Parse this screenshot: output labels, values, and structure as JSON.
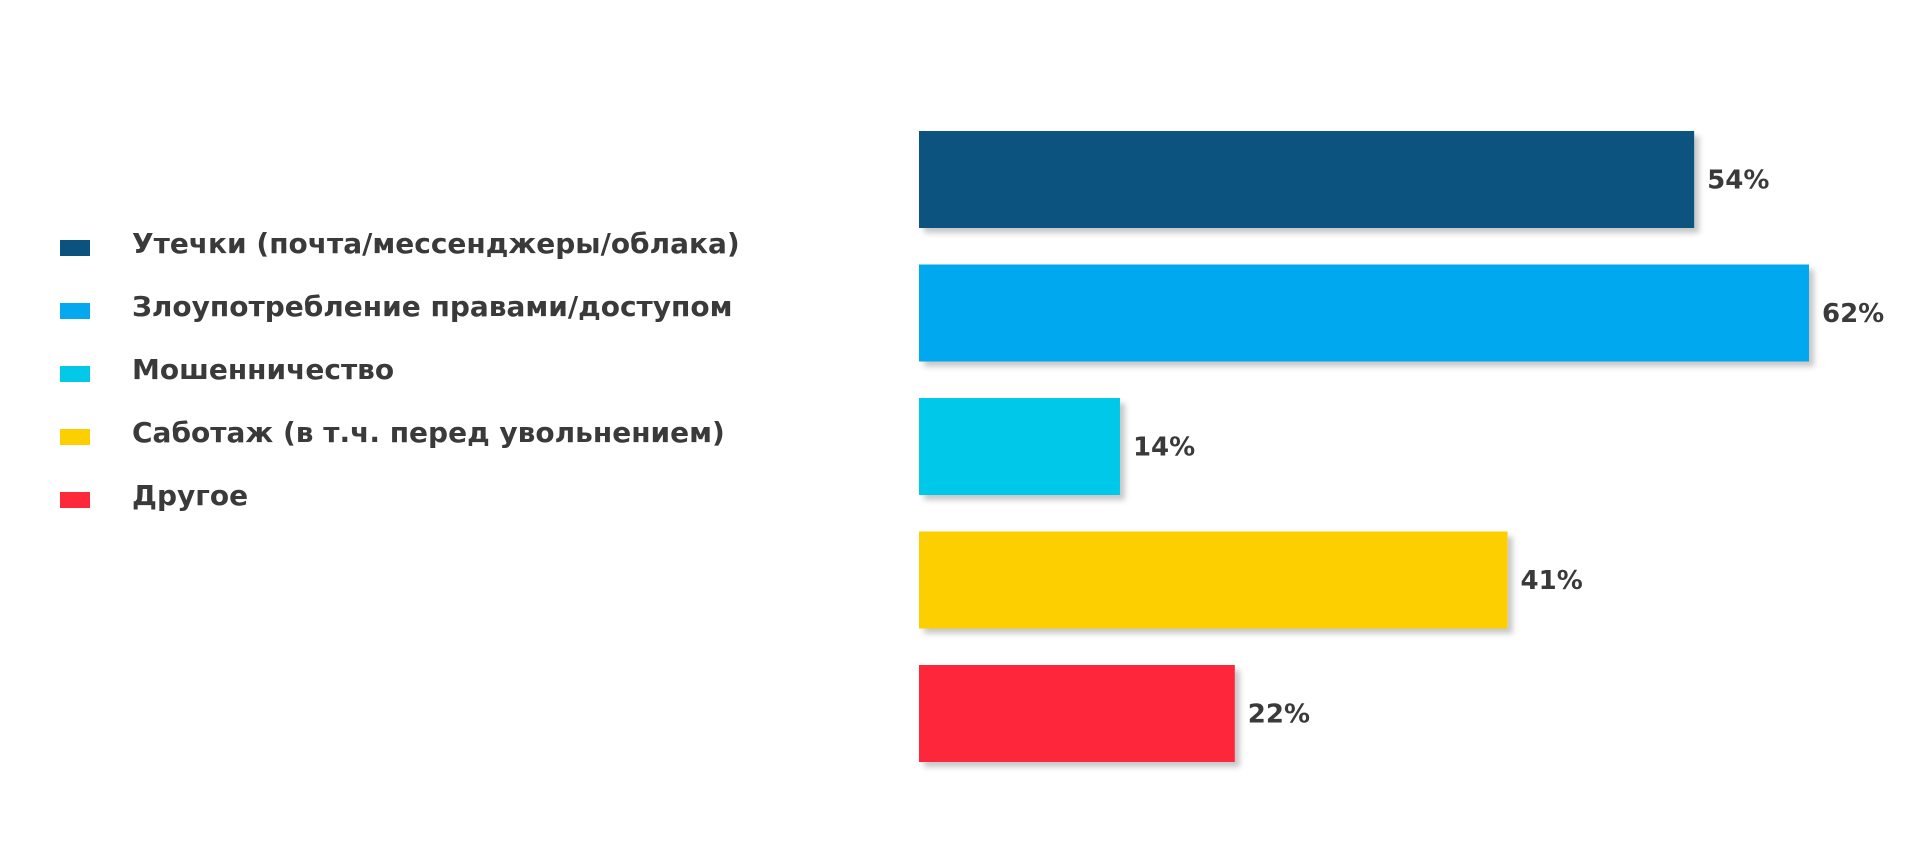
{
  "chart_data": {
    "type": "bar",
    "orientation": "horizontal",
    "categories": [
      "Утечки (почта/мессенджеры/облака)",
      "Злоупотребление правами/доступом",
      "Мошенничество",
      "Саботаж (в т.ч. перед увольнением)",
      "Другое"
    ],
    "values": [
      54,
      62,
      14,
      41,
      22
    ],
    "value_labels": [
      "54%",
      "62%",
      "14%",
      "41%",
      "22%"
    ],
    "colors": [
      "#0b527f",
      "#05a8ef",
      "#03c8e8",
      "#fdcf01",
      "#fd283a"
    ],
    "xlim": [
      0,
      62
    ],
    "grid": false,
    "legend_position": "left",
    "title": "",
    "xlabel": "",
    "ylabel": ""
  }
}
